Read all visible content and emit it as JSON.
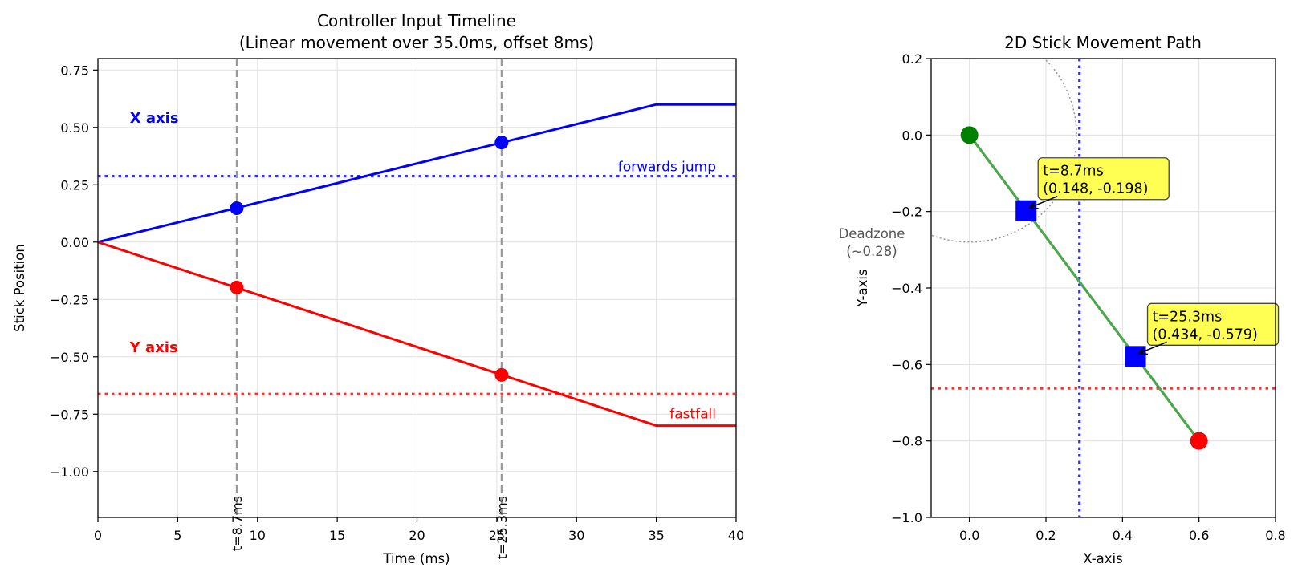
{
  "chart_data": [
    {
      "type": "line",
      "title": "Controller Input Timeline",
      "subtitle": "(Linear movement over 35.0ms, offset 8ms)",
      "xlabel": "Time (ms)",
      "ylabel": "Stick Position",
      "xlim": [
        0,
        40
      ],
      "ylim": [
        -1.2,
        0.8
      ],
      "xticks": [
        0,
        5,
        10,
        15,
        20,
        25,
        30,
        35,
        40
      ],
      "xtick_labels": [
        "0",
        "5",
        "10",
        "15",
        "20",
        "25",
        "30",
        "35",
        "40"
      ],
      "yticks": [
        0.75,
        0.5,
        0.25,
        0.0,
        -0.25,
        -0.5,
        -0.75,
        -1.0
      ],
      "ytick_labels": [
        "0.75",
        "0.50",
        "0.25",
        "0.00",
        "−0.25",
        "−0.50",
        "−0.75",
        "−1.00"
      ],
      "grid": true,
      "series": [
        {
          "name": "X axis",
          "color": "#0000ff",
          "x": [
            0,
            35,
            40
          ],
          "y": [
            0,
            0.6,
            0.6
          ]
        },
        {
          "name": "Y axis",
          "color": "#ff0000",
          "x": [
            0,
            35,
            40
          ],
          "y": [
            0,
            -0.8,
            -0.8
          ]
        }
      ],
      "markers": [
        {
          "series": "X axis",
          "x": 8.7,
          "y": 0.148,
          "color": "#0000ff"
        },
        {
          "series": "X axis",
          "x": 25.3,
          "y": 0.434,
          "color": "#0000ff"
        },
        {
          "series": "Y axis",
          "x": 8.7,
          "y": -0.198,
          "color": "#ff0000"
        },
        {
          "series": "Y axis",
          "x": 25.3,
          "y": -0.579,
          "color": "#ff0000"
        }
      ],
      "thresholds": [
        {
          "label": "forwards jump",
          "value": 0.2875,
          "color": "#0000ff"
        },
        {
          "label": "fastfall",
          "value": -0.6625,
          "color": "#ff0000"
        }
      ],
      "vlines": [
        {
          "x": 8.7,
          "label": "t=8.7ms"
        },
        {
          "x": 25.3,
          "label": "t=25.3ms"
        }
      ],
      "series_labels": [
        {
          "text": "X axis",
          "x": 2,
          "y": 0.52,
          "color": "#0000ff"
        },
        {
          "text": "Y axis",
          "x": 2,
          "y": -0.48,
          "color": "#ff0000"
        }
      ]
    },
    {
      "type": "line",
      "title": "2D Stick Movement Path",
      "xlabel": "X-axis",
      "ylabel": "Y-axis",
      "xlim": [
        -0.1,
        0.8
      ],
      "ylim": [
        -1.0,
        0.2
      ],
      "xticks": [
        0.0,
        0.2,
        0.4,
        0.6,
        0.8
      ],
      "xtick_labels": [
        "0.0",
        "0.2",
        "0.4",
        "0.6",
        "0.8"
      ],
      "yticks": [
        0.2,
        0.0,
        -0.2,
        -0.4,
        -0.6,
        -0.8,
        -1.0
      ],
      "ytick_labels": [
        "0.2",
        "0.0",
        "−0.2",
        "−0.4",
        "−0.6",
        "−0.8",
        "−1.0"
      ],
      "grid": true,
      "path": {
        "x": [
          0,
          0.6
        ],
        "y": [
          0,
          -0.8
        ],
        "color": "#4ca64c"
      },
      "start_point": {
        "x": 0,
        "y": 0,
        "color": "#008000"
      },
      "end_point": {
        "x": 0.6,
        "y": -0.8,
        "color": "#ff0000"
      },
      "samples": [
        {
          "x": 0.148,
          "y": -0.198,
          "label_time": "t=8.7ms",
          "label_coords": "(0.148, -0.198)"
        },
        {
          "x": 0.434,
          "y": -0.579,
          "label_time": "t=25.3ms",
          "label_coords": "(0.434, -0.579)"
        }
      ],
      "deadzone": {
        "radius": 0.28,
        "label": "Deadzone",
        "sublabel": "(~0.28)"
      },
      "threshold_x": {
        "value": 0.2875,
        "color": "#0000ff"
      },
      "threshold_y": {
        "value": -0.6625,
        "color": "#ff0000"
      }
    }
  ]
}
